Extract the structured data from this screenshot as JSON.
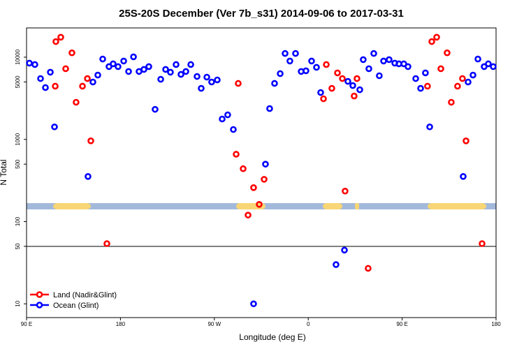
{
  "chart_data": {
    "type": "scatter",
    "title": "25S-20S December (Ver 7b_s31)   2014-09-06 to 2017-03-31",
    "x_label": "Longitude (deg E)",
    "y_label": "N Total",
    "log_y": true,
    "hline": 50,
    "xlim": [
      90,
      540
    ],
    "ylim": [
      6.8,
      22700
    ],
    "xticks": [
      {
        "value": 90,
        "label": "90 E"
      },
      180,
      {
        "value": 270,
        "label": "90 W"
      },
      {
        "value": 360,
        "label": "0"
      },
      {
        "value": 450,
        "label": "90 E"
      },
      {
        "value": 540,
        "label": "180"
      }
    ],
    "yticks": [
      10,
      50,
      100,
      500,
      1000,
      5000,
      10000
    ],
    "legend": "bottom-left",
    "series": [
      {
        "name": "Land (Nadir&Glint)",
        "color": "#ff0000",
        "x": [
          118.1,
          122.8,
          117.5,
          127.5,
          133.5,
          137.5,
          143.6,
          148.3,
          151.6,
          167.0,
          290.9,
          292.9,
          297.6,
          302.3,
          307.6,
          313.0,
          317.7,
          377.3,
          382.6,
          374.6,
          388.0,
          392.7,
          395.3,
          404.0,
          406.7,
          417.4,
          474.3,
          478.4,
          483.1,
          487.1,
          493.1,
          497.1,
          503.1,
          507.8,
          511.2,
          526.6
        ],
        "values": [
          15500,
          17500,
          4440,
          7240,
          11300,
          2830,
          4440,
          5500,
          960,
          54,
          660,
          4800,
          440,
          120,
          259,
          162,
          327,
          8140,
          4180,
          3120,
          6440,
          5500,
          235,
          3370,
          5500,
          27,
          4440,
          15500,
          17500,
          7240,
          11300,
          2830,
          4440,
          5500,
          960,
          54
        ]
      },
      {
        "name": "Ocean (Glint)",
        "color": "#0000ff",
        "x": [
          92.7,
          98.0,
          103.4,
          108.1,
          112.8,
          116.8,
          148.9,
          153.6,
          158.3,
          163.0,
          169.0,
          173.0,
          177.7,
          183.1,
          187.8,
          192.5,
          197.8,
          202.5,
          207.2,
          213.2,
          218.6,
          223.3,
          227.9,
          233.3,
          238.0,
          242.7,
          247.4,
          253.4,
          257.4,
          262.8,
          267.4,
          272.8,
          277.5,
          282.8,
          288.2,
          307.6,
          319.0,
          323.0,
          327.7,
          333.1,
          337.8,
          342.4,
          347.8,
          353.2,
          357.8,
          363.2,
          367.9,
          371.9,
          386.6,
          394.7,
          398.0,
          402.7,
          409.4,
          412.7,
          418.1,
          422.8,
          428.1,
          432.2,
          437.5,
          442.9,
          446.9,
          451.6,
          455.6,
          463.0,
          467.7,
          472.3,
          476.4,
          508.5,
          513.2,
          517.9,
          522.6,
          528.6,
          532.6,
          537.3
        ],
        "values": [
          8470,
          8140,
          5500,
          4270,
          6570,
          1420,
          354,
          4990,
          6060,
          9500,
          7680,
          8300,
          7680,
          8980,
          6700,
          10100,
          6700,
          7100,
          7680,
          2320,
          5390,
          7100,
          6570,
          8140,
          6180,
          6700,
          8140,
          5830,
          4180,
          5720,
          4990,
          5290,
          1770,
          1990,
          1320,
          10,
          500,
          2370,
          4800,
          6310,
          11100,
          8980,
          11100,
          6700,
          6830,
          8980,
          7530,
          3720,
          30,
          45,
          5080,
          4520,
          4020,
          9340,
          7240,
          11100,
          5950,
          8980,
          9340,
          8470,
          8300,
          8300,
          7680,
          5500,
          4180,
          6440,
          1420,
          354,
          4990,
          6060,
          9500,
          7680,
          8300,
          7680
        ]
      }
    ]
  }
}
